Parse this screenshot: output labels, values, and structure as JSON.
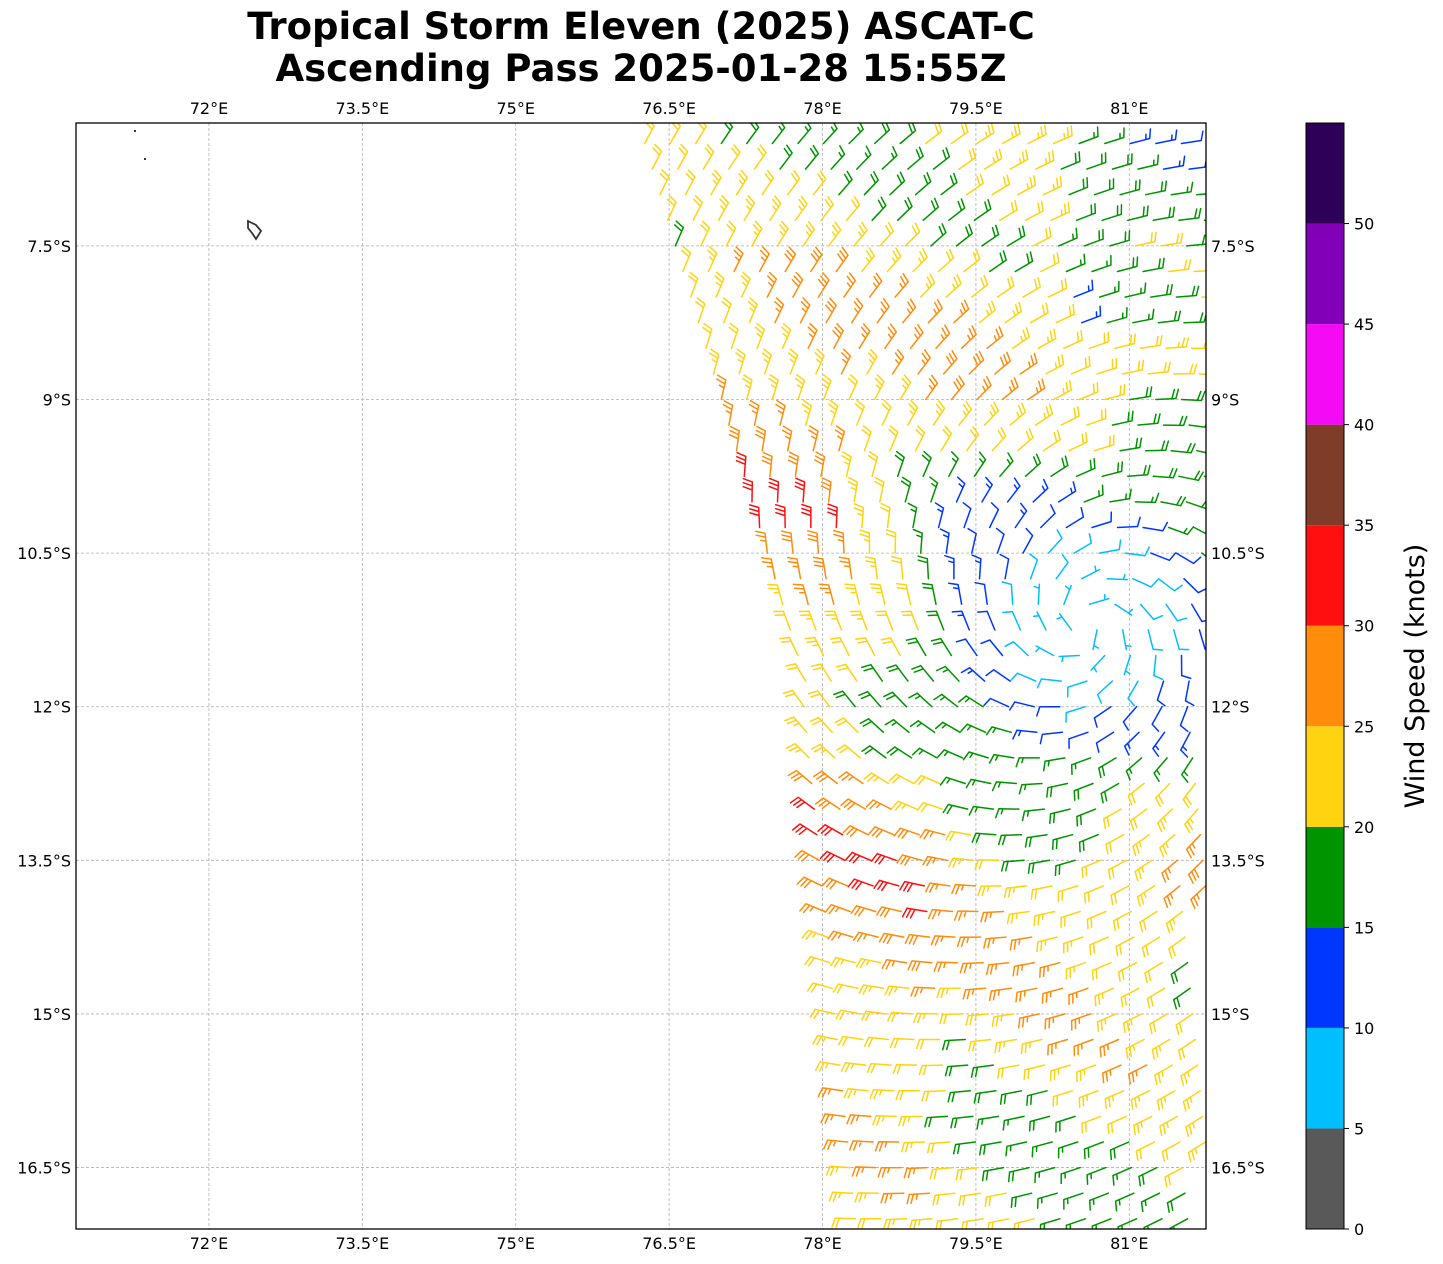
{
  "title": {
    "line1": "Tropical Storm Eleven (2025) ASCAT-C",
    "line2": "Ascending Pass 2025-01-28 15:55Z"
  },
  "map": {
    "lon_range": [
      70.7,
      81.75
    ],
    "lat_range": [
      -17.1,
      -6.3
    ],
    "lon_ticks": [
      {
        "value": 72,
        "label": "72°E"
      },
      {
        "value": 73.5,
        "label": "73.5°E"
      },
      {
        "value": 75,
        "label": "75°E"
      },
      {
        "value": 76.5,
        "label": "76.5°E"
      },
      {
        "value": 78,
        "label": "78°E"
      },
      {
        "value": 79.5,
        "label": "79.5°E"
      },
      {
        "value": 81,
        "label": "81°E"
      }
    ],
    "lat_ticks": [
      {
        "value": -7.5,
        "label": "7.5°S"
      },
      {
        "value": -9,
        "label": "9°S"
      },
      {
        "value": -10.5,
        "label": "10.5°S"
      },
      {
        "value": -12,
        "label": "12°S"
      },
      {
        "value": -13.5,
        "label": "13.5°S"
      },
      {
        "value": -15,
        "label": "15°S"
      },
      {
        "value": -16.5,
        "label": "16.5°S"
      }
    ],
    "gridlines": true,
    "storm_center": {
      "lon": 80.6,
      "lat": -11.2
    }
  },
  "colorbar": {
    "label": "Wind Speed (knots)",
    "bins": [
      {
        "min": 0,
        "max": 5,
        "color": "#595959"
      },
      {
        "min": 5,
        "max": 10,
        "color": "#00bfff"
      },
      {
        "min": 10,
        "max": 15,
        "color": "#0037ff"
      },
      {
        "min": 15,
        "max": 20,
        "color": "#009400"
      },
      {
        "min": 20,
        "max": 25,
        "color": "#ffd30f"
      },
      {
        "min": 25,
        "max": 30,
        "color": "#ff8c0a"
      },
      {
        "min": 30,
        "max": 35,
        "color": "#ff0f0f"
      },
      {
        "min": 35,
        "max": 40,
        "color": "#7f3c29"
      },
      {
        "min": 40,
        "max": 45,
        "color": "#f50af5"
      },
      {
        "min": 45,
        "max": 50,
        "color": "#8200b8"
      },
      {
        "min": 50,
        "max": 55,
        "color": "#2f0058"
      }
    ],
    "ticks": [
      "0",
      "5",
      "10",
      "15",
      "20",
      "25",
      "30",
      "35",
      "40",
      "45",
      "50"
    ]
  }
}
